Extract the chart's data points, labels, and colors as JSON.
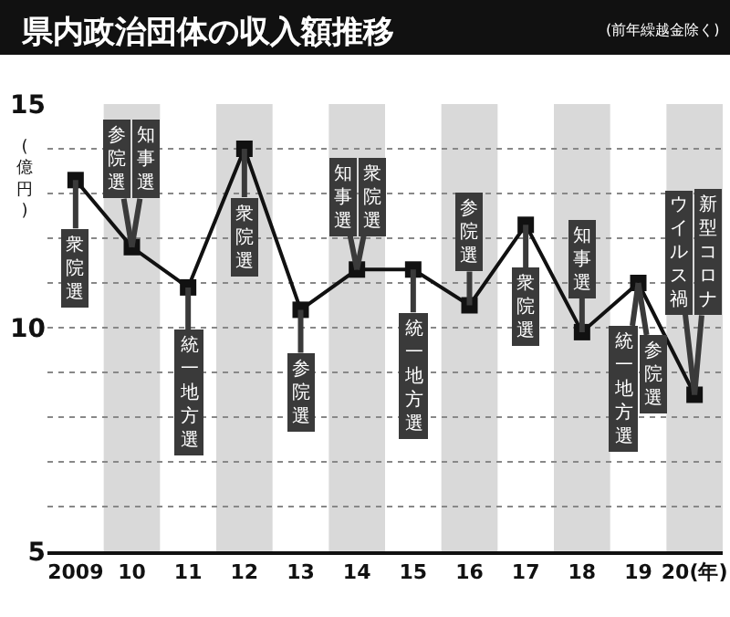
{
  "chart_data": {
    "type": "line",
    "title": "県内政治団体の収入額推移",
    "subtitle": "(前年繰越金除く)",
    "ylabel": "(億円)",
    "categories": [
      "2009",
      "10",
      "11",
      "12",
      "13",
      "14",
      "15",
      "16",
      "17",
      "18",
      "19",
      "20(年)"
    ],
    "series": [
      {
        "color": "#111111",
        "values": [
          13.3,
          11.8,
          10.9,
          14.0,
          10.4,
          11.3,
          11.3,
          10.5,
          12.3,
          9.9,
          11.0,
          8.5
        ]
      }
    ],
    "ylim": [
      5,
      15
    ],
    "yticks": [
      5,
      {
        "value": 6,
        "label": null
      },
      {
        "value": 7,
        "label": null
      },
      {
        "value": 8,
        "label": null
      },
      {
        "value": 9,
        "label": null
      },
      10,
      {
        "value": 11,
        "label": null
      },
      {
        "value": 12,
        "label": null
      },
      {
        "value": 13,
        "label": null
      },
      {
        "value": 14,
        "label": null
      },
      15
    ],
    "grid": "y",
    "marker": "square",
    "line_style": "solid",
    "bands": [
      {
        "axis": "x",
        "from": "10",
        "to": "10",
        "color": "#d9d9d9"
      },
      {
        "axis": "x",
        "from": "12",
        "to": "12",
        "color": "#d9d9d9"
      },
      {
        "axis": "x",
        "from": "14",
        "to": "14",
        "color": "#d9d9d9"
      },
      {
        "axis": "x",
        "from": "16",
        "to": "16",
        "color": "#d9d9d9"
      },
      {
        "axis": "x",
        "from": "18",
        "to": "18",
        "color": "#d9d9d9"
      },
      {
        "axis": "x",
        "from": "20(年)",
        "to": "20(年)",
        "color": "#d9d9d9"
      }
    ],
    "annotations": [
      {
        "text": "衆院選",
        "x": "2009",
        "y": 13.3
      },
      {
        "text": "知事選",
        "x": "10",
        "y": 11.8
      },
      {
        "text": "参院選",
        "x": "10",
        "y": 11.8
      },
      {
        "text": "統一地方選",
        "x": "11",
        "y": 10.9
      },
      {
        "text": "衆院選",
        "x": "12",
        "y": 14.0
      },
      {
        "text": "参院選",
        "x": "13",
        "y": 10.4
      },
      {
        "text": "衆院選",
        "x": "14",
        "y": 11.3
      },
      {
        "text": "知事選",
        "x": "14",
        "y": 11.3
      },
      {
        "text": "統一地方選",
        "x": "15",
        "y": 11.3
      },
      {
        "text": "参院選",
        "x": "16",
        "y": 10.5
      },
      {
        "text": "衆院選",
        "x": "17",
        "y": 12.3
      },
      {
        "text": "知事選",
        "x": "18",
        "y": 9.9
      },
      {
        "text": "参院選",
        "x": "19",
        "y": 11.0
      },
      {
        "text": "統一地方選",
        "x": "19",
        "y": 11.0
      },
      {
        "text": "新型コロナ",
        "x": "20(年)",
        "y": 8.5
      },
      {
        "text": "ウイルス禍",
        "x": "20(年)",
        "y": 8.5
      }
    ]
  }
}
